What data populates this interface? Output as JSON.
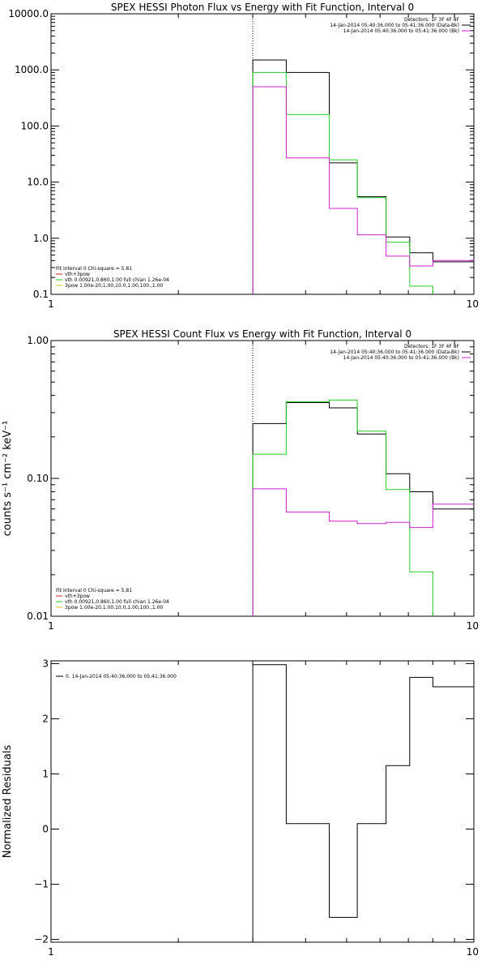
{
  "chart_data": [
    {
      "id": "photon",
      "type": "line",
      "title": "SPEX HESSI Photon Flux vs Energy with Fit Function, Interval 0",
      "xlabel": "",
      "ylabel": "",
      "xscale": "log",
      "yscale": "log",
      "xlim": [
        1,
        10
      ],
      "ylim": [
        0.1,
        10000
      ],
      "xticks": [
        {
          "v": 1,
          "label": "1"
        },
        {
          "v": 10,
          "label": "10"
        }
      ],
      "yticks": [
        {
          "v": 0.1,
          "label": "0.1"
        },
        {
          "v": 1,
          "label": "1.0"
        },
        {
          "v": 10,
          "label": "10.0"
        },
        {
          "v": 100,
          "label": "100.0"
        },
        {
          "v": 1000,
          "label": "1000.0"
        },
        {
          "v": 10000,
          "label": "10000.0"
        }
      ],
      "vline": 3,
      "legend_top_right": [
        {
          "text": "Detectors: 1F 3F 4F 8F",
          "color": ""
        },
        {
          "text": "14-Jan-2014 05:40:36.000 to 05:41:36.000 (Data-Bk)",
          "color": "#000000"
        },
        {
          "text": "14-Jan-2014 05:40:36.000 to 05:41:36.000 (Bk)",
          "color": "#cc22cc"
        }
      ],
      "legend_bottom_left": [
        {
          "text": "Fit Interval 0   Chi-square = 5.81",
          "color": ""
        },
        {
          "text": "vth+3pow",
          "color": "#cc2222"
        },
        {
          "text": "vth 0.00921,0.860,1.00  full chian 1.26e-04",
          "color": "#22cc22"
        },
        {
          "text": "3pow 1.00e-20,1.00,10.0,1.00,100.,1.00",
          "color": "#cccc22"
        }
      ],
      "series": [
        {
          "color": "#000000",
          "edges": [
            3,
            3.6,
            4.55,
            5.3,
            6.2,
            7.05,
            8,
            10
          ],
          "values": [
            1500,
            900,
            22,
            5.5,
            1.05,
            0.55,
            0.38
          ]
        },
        {
          "color": "#22cc22",
          "edges": [
            3,
            3.6,
            4.55,
            5.3,
            6.2,
            7.05,
            8
          ],
          "values": [
            900,
            160,
            25,
            5.3,
            0.85,
            0.14
          ]
        },
        {
          "color": "#cc22cc",
          "edges": [
            3,
            3.6,
            4.55,
            5.3,
            6.2,
            7.05,
            8,
            10
          ],
          "values": [
            500,
            27,
            3.4,
            1.15,
            0.48,
            0.32,
            0.4
          ]
        }
      ]
    },
    {
      "id": "count",
      "type": "line",
      "title": "SPEX HESSI Count Flux vs Energy with Fit Function, Interval 0",
      "xlabel": "",
      "ylabel": "counts s⁻¹ cm⁻² keV⁻¹",
      "xscale": "log",
      "yscale": "log",
      "xlim": [
        1,
        10
      ],
      "ylim": [
        0.01,
        1
      ],
      "xticks": [
        {
          "v": 1,
          "label": "1"
        },
        {
          "v": 10,
          "label": "10"
        }
      ],
      "yticks": [
        {
          "v": 0.01,
          "label": "0.01"
        },
        {
          "v": 0.1,
          "label": "0.10"
        },
        {
          "v": 1,
          "label": "1.00"
        }
      ],
      "vline": 3,
      "legend_top_right": [
        {
          "text": "Detectors: 1F 3F 4F 8F",
          "color": ""
        },
        {
          "text": "14-Jan-2014 05:40:36.000 to 05:41:36.000 (Data-Bk)",
          "color": "#000000"
        },
        {
          "text": "14-Jan-2014 05:40:36.000 to 05:41:36.000 (Bk)",
          "color": "#cc22cc"
        }
      ],
      "legend_bottom_left": [
        {
          "text": "Fit Interval 0   Chi-square = 5.81",
          "color": ""
        },
        {
          "text": "vth+3pow",
          "color": "#cc2222"
        },
        {
          "text": "vth 0.00921,0.860,1.00  full chian 1.26e-04",
          "color": "#22cc22"
        },
        {
          "text": "3pow 1.00e-20,1.00,10.0,1.00,100.,1.00",
          "color": "#cccc22"
        }
      ],
      "series": [
        {
          "color": "#000000",
          "edges": [
            3,
            3.6,
            4.55,
            5.3,
            6.2,
            7.05,
            8,
            10
          ],
          "values": [
            0.25,
            0.355,
            0.325,
            0.21,
            0.108,
            0.08,
            0.06
          ]
        },
        {
          "color": "#22cc22",
          "edges": [
            3,
            3.6,
            4.55,
            5.3,
            6.2,
            7.05,
            8
          ],
          "values": [
            0.15,
            0.36,
            0.37,
            0.22,
            0.083,
            0.021
          ]
        },
        {
          "color": "#cc22cc",
          "edges": [
            3,
            3.6,
            4.55,
            5.3,
            6.2,
            7.05,
            8,
            10
          ],
          "values": [
            0.084,
            0.057,
            0.049,
            0.047,
            0.048,
            0.044,
            0.065
          ]
        }
      ]
    },
    {
      "id": "resid",
      "type": "line",
      "title": "",
      "xlabel": "",
      "ylabel": "Normalized Residuals",
      "xscale": "log",
      "yscale": "linear",
      "xlim": [
        1,
        10
      ],
      "ylim": [
        -2.05,
        3.05
      ],
      "xticks": [
        {
          "v": 1,
          "label": "1"
        },
        {
          "v": 10,
          "label": "10"
        }
      ],
      "yticks": [
        {
          "v": -2,
          "label": "−2"
        },
        {
          "v": -1,
          "label": "−1"
        },
        {
          "v": 0,
          "label": "0"
        },
        {
          "v": 1,
          "label": "1"
        },
        {
          "v": 2,
          "label": "2"
        },
        {
          "v": 3,
          "label": "3"
        }
      ],
      "legend_top_left": [
        {
          "text": "0. 14-Jan-2014 05:40:36.000 to 05:41:36.000",
          "color": "#000000"
        }
      ],
      "series": [
        {
          "color": "#000000",
          "edges": [
            3,
            3.6,
            4.55,
            5.3,
            6.2,
            7.05,
            8,
            10
          ],
          "values": [
            2.98,
            0.1,
            -1.6,
            0.1,
            1.15,
            2.75,
            2.58
          ]
        }
      ]
    }
  ]
}
